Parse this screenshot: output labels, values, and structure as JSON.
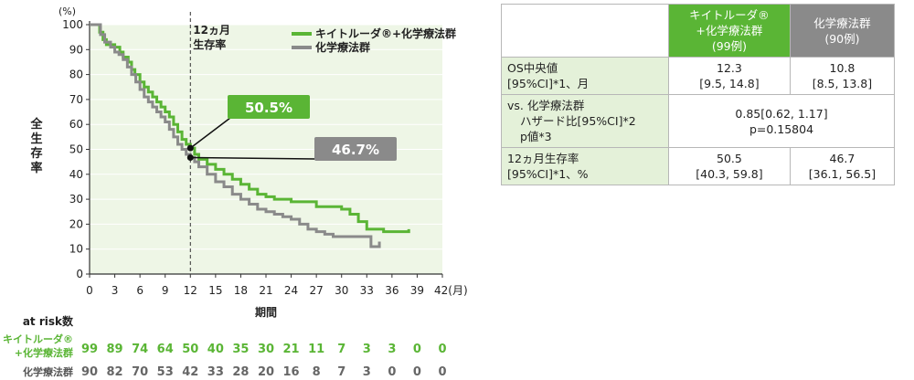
{
  "chart_data": {
    "type": "line",
    "y_unit": "(%)",
    "x_unit": "42(月)",
    "ylabel": "全生存率",
    "xlabel": "期間",
    "xlim": [
      0,
      42
    ],
    "ylim": [
      0,
      100
    ],
    "x_ticks": [
      "0",
      "3",
      "6",
      "9",
      "12",
      "15",
      "18",
      "21",
      "24",
      "27",
      "30",
      "33",
      "36",
      "39"
    ],
    "y_ticks": [
      "0",
      "10",
      "20",
      "30",
      "40",
      "50",
      "60",
      "70",
      "80",
      "90",
      "100"
    ],
    "vline": {
      "x": 12,
      "label_line1": "12ヵ月",
      "label_line2": "生存率"
    },
    "legend_position": "top-right",
    "series": [
      {
        "name": "キイトルーダ®+化学療法群",
        "color": "#5ab535",
        "callout": "50.5%",
        "points": [
          [
            0,
            100
          ],
          [
            1,
            100
          ],
          [
            1.2,
            97
          ],
          [
            1.6,
            94
          ],
          [
            2,
            92
          ],
          [
            3,
            91
          ],
          [
            3.6,
            89
          ],
          [
            4,
            87
          ],
          [
            4.6,
            85
          ],
          [
            5,
            82
          ],
          [
            5.4,
            80
          ],
          [
            6,
            77
          ],
          [
            6.5,
            75
          ],
          [
            7,
            73
          ],
          [
            7.5,
            71
          ],
          [
            8,
            69
          ],
          [
            8.5,
            67
          ],
          [
            9,
            65
          ],
          [
            9.5,
            63
          ],
          [
            10,
            60
          ],
          [
            10.5,
            57
          ],
          [
            11,
            54
          ],
          [
            11.5,
            52
          ],
          [
            12,
            50.5
          ],
          [
            12.5,
            48
          ],
          [
            13,
            46
          ],
          [
            14,
            44
          ],
          [
            15,
            42
          ],
          [
            16,
            40
          ],
          [
            17,
            38
          ],
          [
            18,
            36
          ],
          [
            19,
            34
          ],
          [
            20,
            32
          ],
          [
            21,
            31
          ],
          [
            22,
            30
          ],
          [
            24,
            29
          ],
          [
            26,
            29
          ],
          [
            27,
            27
          ],
          [
            29,
            27
          ],
          [
            30,
            26
          ],
          [
            31,
            24
          ],
          [
            32,
            21
          ],
          [
            33,
            18
          ],
          [
            35,
            17
          ],
          [
            37,
            17
          ],
          [
            38,
            18
          ]
        ]
      },
      {
        "name": "化学療法群",
        "color": "#8a8a8a",
        "callout": "46.7%",
        "points": [
          [
            0,
            100
          ],
          [
            1,
            100
          ],
          [
            1.3,
            96
          ],
          [
            1.8,
            93
          ],
          [
            2.5,
            91
          ],
          [
            3,
            89
          ],
          [
            3.5,
            88
          ],
          [
            4,
            86
          ],
          [
            4.5,
            83
          ],
          [
            5,
            80
          ],
          [
            5.5,
            77
          ],
          [
            6,
            74
          ],
          [
            6.5,
            71
          ],
          [
            7,
            69
          ],
          [
            7.5,
            67
          ],
          [
            8,
            65
          ],
          [
            8.5,
            63
          ],
          [
            9,
            61
          ],
          [
            9.5,
            58
          ],
          [
            10,
            55
          ],
          [
            10.5,
            52
          ],
          [
            11,
            50
          ],
          [
            11.5,
            48
          ],
          [
            12,
            46.7
          ],
          [
            12.5,
            45
          ],
          [
            13,
            43
          ],
          [
            14,
            40
          ],
          [
            15,
            37
          ],
          [
            16,
            35
          ],
          [
            17,
            32
          ],
          [
            18,
            30
          ],
          [
            19,
            28
          ],
          [
            20,
            26
          ],
          [
            21,
            25
          ],
          [
            22,
            24
          ],
          [
            23,
            23
          ],
          [
            24,
            22
          ],
          [
            25,
            20
          ],
          [
            26,
            18
          ],
          [
            27,
            17
          ],
          [
            28,
            16
          ],
          [
            29,
            15
          ],
          [
            30,
            15
          ],
          [
            31,
            15
          ],
          [
            32,
            15
          ],
          [
            33,
            15
          ],
          [
            33.5,
            11
          ],
          [
            34.5,
            11
          ],
          [
            34.5,
            13
          ]
        ]
      }
    ],
    "at_risk": {
      "title": "at risk数",
      "label_k_line1": "キイトルーダ®",
      "label_k_line2": "+化学療法群",
      "label_c": "化学療法群",
      "keytruda": [
        "99",
        "89",
        "74",
        "64",
        "50",
        "40",
        "35",
        "30",
        "21",
        "11",
        "7",
        "3",
        "3",
        "0",
        "0"
      ],
      "chemo": [
        "90",
        "82",
        "70",
        "53",
        "42",
        "33",
        "28",
        "20",
        "16",
        "8",
        "7",
        "3",
        "0",
        "0",
        "0"
      ]
    }
  },
  "table": {
    "header": {
      "keytruda_l1": "キイトルーダ®",
      "keytruda_l2": "+化学療法群",
      "keytruda_l3": "(99例)",
      "chemo_l1": "化学療法群",
      "chemo_l2": "(90例)"
    },
    "rows": {
      "os_label_l1": "OS中央値",
      "os_label_l2": "[95%CI]*1、月",
      "os_k_l1": "12.3",
      "os_k_l2": "[9.5, 14.8]",
      "os_c_l1": "10.8",
      "os_c_l2": "[8.5, 13.8]",
      "hr_label_l1": "vs. 化学療法群",
      "hr_label_l2": "ハザード比[95%CI]*2",
      "hr_label_l3": "p値*3",
      "hr_val_l1": "0.85[0.62, 1.17]",
      "hr_val_l2": "p=0.15804",
      "surv_label_l1": "12ヵ月生存率",
      "surv_label_l2": "[95%CI]*1、%",
      "surv_k_l1": "50.5",
      "surv_k_l2": "[40.3, 59.8]",
      "surv_c_l1": "46.7",
      "surv_c_l2": "[36.1, 56.5]"
    }
  }
}
